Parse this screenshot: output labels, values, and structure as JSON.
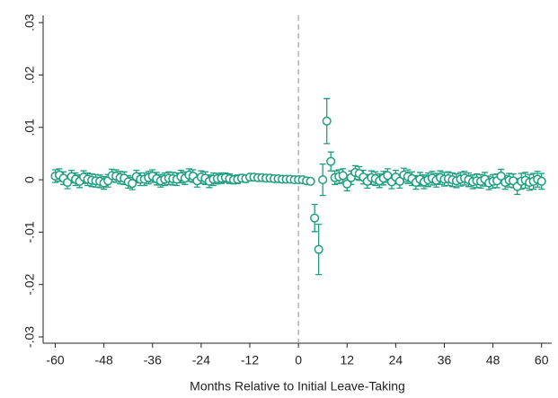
{
  "chart_data": {
    "type": "errorbar_scatter",
    "xlabel": "Months Relative to Initial Leave-Taking",
    "x": [
      -60,
      -59,
      -58,
      -57,
      -56,
      -55,
      -54,
      -53,
      -52,
      -51,
      -50,
      -49,
      -48,
      -47,
      -46,
      -45,
      -44,
      -43,
      -42,
      -41,
      -40,
      -39,
      -38,
      -37,
      -36,
      -35,
      -34,
      -33,
      -32,
      -31,
      -30,
      -29,
      -28,
      -27,
      -26,
      -25,
      -24,
      -23,
      -22,
      -21,
      -20,
      -19,
      -18,
      -17,
      -16,
      -15,
      -14,
      -13,
      -12,
      -11,
      -10,
      -9,
      -8,
      -7,
      -6,
      -5,
      -4,
      -3,
      -2,
      -1,
      0,
      1,
      2,
      3,
      4,
      5,
      6,
      7,
      8,
      9,
      10,
      11,
      12,
      13,
      14,
      15,
      16,
      17,
      18,
      19,
      20,
      21,
      22,
      23,
      24,
      25,
      26,
      27,
      28,
      29,
      30,
      31,
      32,
      33,
      34,
      35,
      36,
      37,
      38,
      39,
      40,
      41,
      42,
      43,
      44,
      45,
      46,
      47,
      48,
      49,
      50,
      51,
      52,
      53,
      54,
      55,
      56,
      57,
      58,
      59,
      60
    ],
    "values": [
      0.0007,
      0.0009,
      0.0003,
      -0.0005,
      0.0006,
      0.0001,
      -0.0003,
      0.0005,
      0.0001,
      -0.0001,
      -0.0002,
      -0.0003,
      -0.0006,
      -0.0002,
      0.0008,
      0.0007,
      0.0004,
      0.0003,
      -0.0004,
      -0.0007,
      0.0006,
      0.0001,
      0.0001,
      0.0004,
      0.0007,
      0.0002,
      -0.0002,
      0.0001,
      0.0003,
      0.0002,
      0.0001,
      0.0006,
      0.0003,
      0.0009,
      0.0007,
      -0.0002,
      0.0005,
      0.0003,
      -0.0003,
      0.0001,
      0.0002,
      0.0003,
      0.0004,
      0.0002,
      0,
      0.0001,
      0.0003,
      0.0002,
      0.0005,
      0.0005,
      0.0004,
      0.0004,
      0.0003,
      0.0003,
      0.0002,
      0.0002,
      0.0001,
      0.0001,
      0.0001,
      0,
      0,
      0,
      -0.0002,
      -0.0003,
      -0.0073,
      -0.0133,
      0,
      0.0112,
      0.0035,
      0.0004,
      0.0006,
      0.0008,
      -0.0008,
      0.0004,
      0.0014,
      0.0012,
      0.0005,
      -0.0003,
      0.0004,
      0.0002,
      -0.0002,
      0.0003,
      0.0008,
      -0.0004,
      0.0005,
      -0.0003,
      0.0009,
      0.0006,
      0.0002,
      -0.0005,
      0.0001,
      -0.0004,
      0,
      0.0003,
      -0.0001,
      0.0004,
      0.0001,
      0.0002,
      0,
      -0.0002,
      0.0001,
      0.0003,
      0,
      -0.0004,
      -0.0002,
      -0.0003,
      0.0001,
      -0.0006,
      -0.0003,
      -0.0002,
      0.0007,
      -0.0005,
      -0.0001,
      -0.0002,
      -0.0013,
      -0.0003,
      -0.0001,
      -0.0005,
      -0.0003,
      0.0001,
      -0.0003
    ],
    "errors": [
      0.0012,
      0.0012,
      0.0012,
      0.0012,
      0.0012,
      0.0012,
      0.0012,
      0.0012,
      0.0012,
      0.0012,
      0.0012,
      0.0012,
      0.0012,
      0.0012,
      0.0012,
      0.0012,
      0.0012,
      0.0012,
      0.0012,
      0.0012,
      0.0012,
      0.0012,
      0.0012,
      0.0012,
      0.0012,
      0.0012,
      0.0012,
      0.0012,
      0.0012,
      0.0012,
      0.0012,
      0.0012,
      0.0012,
      0.0012,
      0.0012,
      0.0012,
      0.0012,
      0.0012,
      0.0012,
      0.0012,
      0.001,
      0.001,
      0.0009,
      0.0009,
      0.0008,
      0.0008,
      0.0007,
      0.0007,
      0.0005,
      0.0005,
      0.0004,
      0.0004,
      0.0003,
      0.0003,
      0.0002,
      0.0002,
      0.0001,
      0.0001,
      0.0001,
      0,
      0,
      0,
      0.0002,
      0.0003,
      0.0026,
      0.0048,
      0.003,
      0.0043,
      0.0018,
      0.0013,
      0.0013,
      0.0013,
      0.0013,
      0.0013,
      0.0013,
      0.0013,
      0.0013,
      0.0013,
      0.0013,
      0.0013,
      0.0013,
      0.0013,
      0.0013,
      0.0013,
      0.0013,
      0.0013,
      0.0013,
      0.0013,
      0.0013,
      0.0013,
      0.0013,
      0.0013,
      0.0013,
      0.0013,
      0.0013,
      0.0013,
      0.0013,
      0.0013,
      0.0013,
      0.0013,
      0.0013,
      0.0013,
      0.0013,
      0.0013,
      0.0013,
      0.0013,
      0.0013,
      0.0013,
      0.0013,
      0.0013,
      0.0013,
      0.0013,
      0.0013,
      0.0013,
      0.0015,
      0.0015,
      0.0015,
      0.0015,
      0.0015,
      0.0015,
      0.0015
    ],
    "color": "#1f9e80",
    "vline": 0,
    "xlim": [
      -63,
      62.5
    ],
    "ylim": [
      -0.0312,
      0.0314
    ],
    "xticks": [
      -60,
      -48,
      -36,
      -24,
      -12,
      0,
      12,
      24,
      36,
      48,
      60
    ],
    "yticks": [
      {
        "value": -0.03,
        "label": "-.03"
      },
      {
        "value": -0.02,
        "label": "-.02"
      },
      {
        "value": -0.01,
        "label": "-.01"
      },
      0,
      {
        "value": 0.01,
        "label": ".01"
      },
      {
        "value": 0.02,
        "label": ".02"
      },
      {
        "value": 0.03,
        "label": ".03"
      }
    ]
  }
}
